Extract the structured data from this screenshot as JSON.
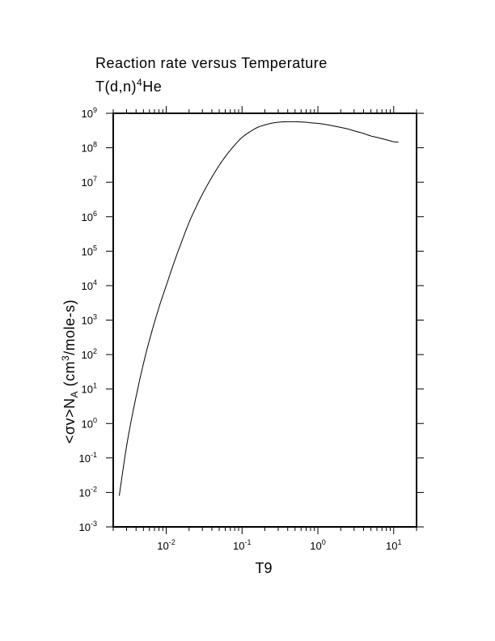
{
  "chart_data": {
    "type": "line",
    "title_line1": "Reaction rate versus Temperature",
    "title_line2": {
      "base": "T(d,n)",
      "sup": "4",
      "rest": "He"
    },
    "xlabel": "T9",
    "ylabel": {
      "p1": "<σv>N",
      "sub": "A",
      "p2": " (cm",
      "sup": "3",
      "p3": "/mole-s)"
    },
    "xscale": "log",
    "yscale": "log",
    "xlim": [
      0.002,
      20
    ],
    "ylim": [
      0.001,
      1000000000
    ],
    "x_ticks": [
      {
        "base": "10",
        "exp": "-2",
        "value": 0.01
      },
      {
        "base": "10",
        "exp": "-1",
        "value": 0.1
      },
      {
        "base": "10",
        "exp": "0",
        "value": 1
      },
      {
        "base": "10",
        "exp": "1",
        "value": 10
      }
    ],
    "y_ticks": [
      {
        "base": "10",
        "exp": "-3",
        "value": 0.001
      },
      {
        "base": "10",
        "exp": "-2",
        "value": 0.01
      },
      {
        "base": "10",
        "exp": "-1",
        "value": 0.1
      },
      {
        "base": "10",
        "exp": "0",
        "value": 1
      },
      {
        "base": "10",
        "exp": "1",
        "value": 10
      },
      {
        "base": "10",
        "exp": "2",
        "value": 100
      },
      {
        "base": "10",
        "exp": "3",
        "value": 1000
      },
      {
        "base": "10",
        "exp": "4",
        "value": 10000
      },
      {
        "base": "10",
        "exp": "5",
        "value": 100000
      },
      {
        "base": "10",
        "exp": "6",
        "value": 1000000
      },
      {
        "base": "10",
        "exp": "7",
        "value": 10000000
      },
      {
        "base": "10",
        "exp": "8",
        "value": 100000000
      },
      {
        "base": "10",
        "exp": "9",
        "value": 1000000000
      }
    ],
    "grid": false,
    "series": [
      {
        "x": [
          0.0024,
          0.003,
          0.004,
          0.005,
          0.006,
          0.008,
          0.01,
          0.013,
          0.016,
          0.02,
          0.025,
          0.03,
          0.04,
          0.05,
          0.06,
          0.08,
          0.1,
          0.13,
          0.16,
          0.2,
          0.25,
          0.3,
          0.4,
          0.5,
          0.6,
          0.7,
          0.8,
          1.0,
          1.3,
          1.6,
          2.0,
          2.5,
          3.0,
          4.0,
          5.0,
          6.0,
          8.0,
          10.0,
          11.5
        ],
        "y": [
          0.008,
          0.22,
          6.0,
          54,
          260,
          2300,
          10000,
          55000,
          190000,
          680000,
          2000000,
          4500000,
          14000000,
          31000000,
          55000000,
          120000000,
          200000000,
          300000000,
          390000000,
          460000000,
          520000000,
          550000000,
          570000000,
          570000000,
          560000000,
          550000000,
          530000000,
          510000000,
          470000000,
          430000000,
          390000000,
          350000000,
          310000000,
          260000000,
          220000000,
          200000000,
          170000000,
          150000000,
          145000000
        ]
      }
    ]
  }
}
